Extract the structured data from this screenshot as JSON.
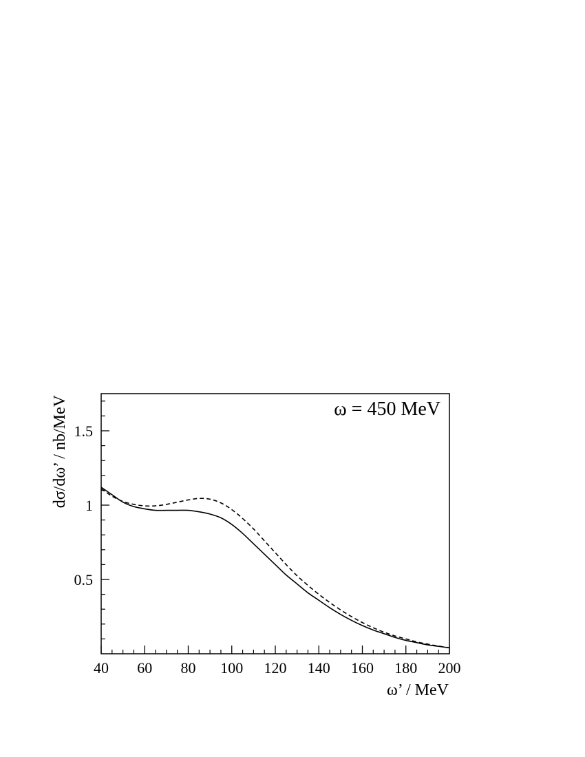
{
  "chart_data": {
    "type": "line",
    "title": "",
    "annotation": "ω = 450 MeV",
    "xlabel": "ω’ / MeV",
    "ylabel": "dσ/dω’ / nb/MeV",
    "xlim": [
      40,
      200
    ],
    "ylim": [
      0,
      1.75
    ],
    "x_ticks": [
      40,
      60,
      80,
      100,
      120,
      140,
      160,
      180,
      200
    ],
    "y_ticks": [
      0.5,
      1,
      1.5
    ],
    "x_tick_labels": [
      "40",
      "60",
      "80",
      "100",
      "120",
      "140",
      "160",
      "180",
      "200"
    ],
    "y_tick_labels": [
      "0.5",
      "1",
      "1.5"
    ],
    "x_minor_step": 5,
    "y_minor_step": 0.1,
    "grid": false,
    "series": [
      {
        "style": "solid",
        "color": "#000000",
        "x": [
          40,
          45,
          50,
          55,
          60,
          65,
          70,
          75,
          80,
          85,
          90,
          95,
          100,
          105,
          110,
          115,
          120,
          125,
          130,
          135,
          140,
          145,
          150,
          155,
          160,
          165,
          170,
          175,
          180,
          185,
          190,
          195,
          200
        ],
        "y": [
          1.12,
          1.07,
          1.02,
          0.99,
          0.975,
          0.965,
          0.965,
          0.965,
          0.965,
          0.955,
          0.94,
          0.915,
          0.87,
          0.81,
          0.74,
          0.67,
          0.6,
          0.53,
          0.47,
          0.41,
          0.36,
          0.31,
          0.265,
          0.225,
          0.19,
          0.16,
          0.135,
          0.11,
          0.09,
          0.075,
          0.06,
          0.05,
          0.04
        ]
      },
      {
        "style": "dashed",
        "color": "#000000",
        "x": [
          40,
          45,
          50,
          55,
          60,
          65,
          70,
          75,
          80,
          85,
          90,
          95,
          100,
          105,
          110,
          115,
          120,
          125,
          130,
          135,
          140,
          145,
          150,
          155,
          160,
          165,
          170,
          175,
          180,
          185,
          190,
          195,
          200
        ],
        "y": [
          1.11,
          1.06,
          1.025,
          1.005,
          0.995,
          0.995,
          1.005,
          1.02,
          1.035,
          1.045,
          1.04,
          1.015,
          0.97,
          0.91,
          0.84,
          0.76,
          0.68,
          0.6,
          0.525,
          0.46,
          0.4,
          0.345,
          0.295,
          0.25,
          0.21,
          0.175,
          0.145,
          0.12,
          0.1,
          0.08,
          0.065,
          0.052,
          0.04
        ]
      }
    ]
  }
}
